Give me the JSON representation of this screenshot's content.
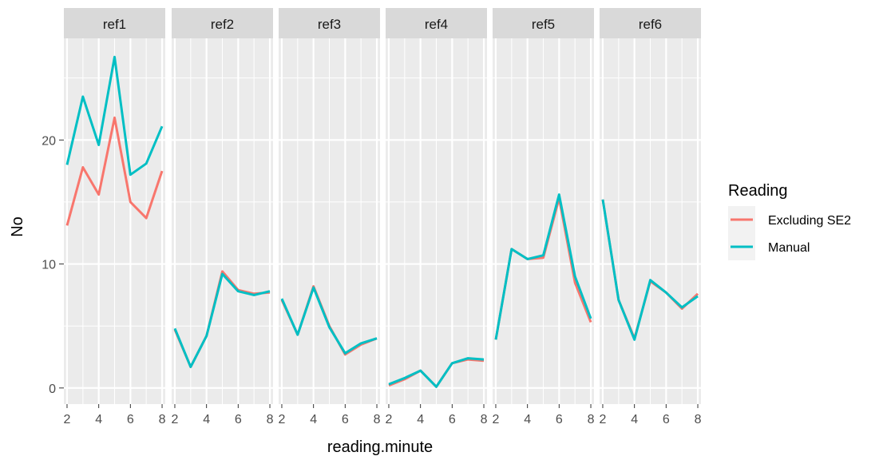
{
  "chart_data": {
    "type": "line",
    "facets": [
      "ref1",
      "ref2",
      "ref3",
      "ref4",
      "ref5",
      "ref6"
    ],
    "xlabel": "reading.minute",
    "ylabel": "No",
    "x": [
      2,
      3,
      4,
      5,
      6,
      7,
      8
    ],
    "xticks": [
      2,
      4,
      6,
      8
    ],
    "xticklabels": [
      "2",
      "4",
      "6",
      "8"
    ],
    "xlim": [
      1.8,
      8.2
    ],
    "yticks": [
      0,
      10,
      20
    ],
    "yticklabels": [
      "0",
      "10",
      "20"
    ],
    "ylim": [
      -1.3,
      28.2
    ],
    "grid": true,
    "legend": {
      "title": "Reading",
      "position": "right",
      "entries": [
        "Excluding SE2",
        "Manual"
      ]
    },
    "series": [
      {
        "name": "Excluding SE2",
        "color": "#F8766D",
        "values": {
          "ref1": [
            13.1,
            17.8,
            15.6,
            21.8,
            15.0,
            13.7,
            17.5
          ],
          "ref2": [
            4.7,
            1.7,
            4.2,
            9.4,
            7.9,
            7.6,
            7.7
          ],
          "ref3": [
            7.1,
            4.3,
            8.2,
            5.0,
            2.7,
            3.5,
            4.0
          ],
          "ref4": [
            0.2,
            0.7,
            1.4,
            0.1,
            2.0,
            2.3,
            2.2
          ],
          "ref5": [
            3.9,
            11.2,
            10.4,
            10.5,
            15.3,
            8.5,
            5.3
          ],
          "ref6": [
            15.2,
            7.1,
            4.0,
            8.6,
            7.7,
            6.4,
            7.6
          ]
        }
      },
      {
        "name": "Manual",
        "color": "#00BFC4",
        "values": {
          "ref1": [
            18.0,
            23.5,
            19.6,
            26.7,
            17.2,
            18.1,
            21.1
          ],
          "ref2": [
            4.8,
            1.7,
            4.2,
            9.2,
            7.8,
            7.5,
            7.8
          ],
          "ref3": [
            7.2,
            4.3,
            8.1,
            4.9,
            2.8,
            3.6,
            4.0
          ],
          "ref4": [
            0.3,
            0.8,
            1.4,
            0.1,
            2.0,
            2.4,
            2.3
          ],
          "ref5": [
            3.9,
            11.2,
            10.4,
            10.7,
            15.6,
            9.0,
            5.6
          ],
          "ref6": [
            15.2,
            7.1,
            3.9,
            8.7,
            7.7,
            6.5,
            7.4
          ]
        }
      }
    ]
  }
}
